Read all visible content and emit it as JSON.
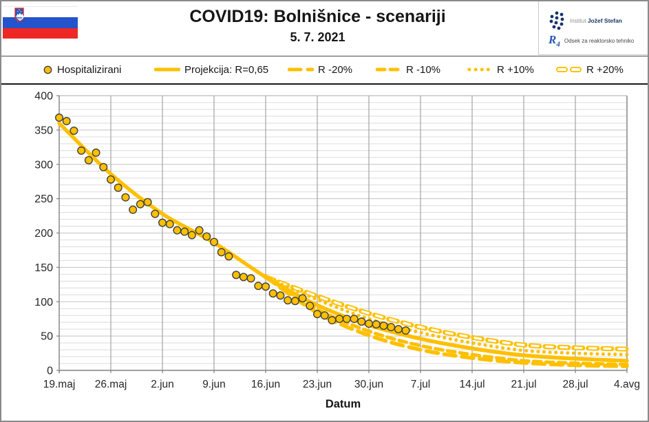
{
  "header": {
    "title": "COVID19: Bolnišnice - scenariji",
    "date": "5. 7. 2021",
    "logo_ijs_prefix": "Institut",
    "logo_ijs_bold": "Jožef Stefan",
    "logo_r4_glyph": "R",
    "logo_r4_sub": "4",
    "logo_r4_text": "Odsek za reaktorsko tehniko"
  },
  "legend": {
    "items": [
      {
        "label": "Hospitalizirani",
        "icon": "circle-marker"
      },
      {
        "label": "Projekcija: R=0,65",
        "icon": "solid-line"
      },
      {
        "label": "R -20%",
        "icon": "long-dash-line"
      },
      {
        "label": "R -10%",
        "icon": "dash-line"
      },
      {
        "label": "R +10%",
        "icon": "dot-line"
      },
      {
        "label": "R +20%",
        "icon": "hollow-dash-line"
      }
    ]
  },
  "chart_data": {
    "type": "line",
    "title": "COVID19: Bolnišnice - scenariji",
    "subtitle": "5. 7. 2021",
    "xlabel": "Datum",
    "ylabel": "",
    "ylim": [
      0,
      400
    ],
    "y_major_step": 50,
    "y_minor_step": 10,
    "grid": "on",
    "legend_position": "top",
    "x_tick_labels": [
      "19.maj",
      "26.maj",
      "2.jun",
      "9.jun",
      "16.jun",
      "23.jun",
      "30.jun",
      "7.jul",
      "14.jul",
      "21.jul",
      "28.jul",
      "4.avg"
    ],
    "x_tick_days": [
      0,
      7,
      14,
      21,
      28,
      35,
      42,
      49,
      56,
      63,
      70,
      77
    ],
    "observed": {
      "name": "Hospitalizirani",
      "start_label": "19.maj",
      "step_days": 1,
      "values": [
        368,
        363,
        349,
        320,
        306,
        317,
        296,
        278,
        266,
        252,
        234,
        242,
        245,
        228,
        215,
        213,
        204,
        202,
        197,
        204,
        195,
        187,
        172,
        166,
        139,
        136,
        134,
        123,
        122,
        112,
        109,
        102,
        101,
        105,
        94,
        82,
        80,
        73,
        75,
        75,
        75,
        71,
        68,
        67,
        65,
        63,
        60,
        58
      ]
    },
    "projection": {
      "name": "Projekcija: R=0,65",
      "days": [
        0,
        7,
        14,
        21,
        28,
        35,
        42,
        49,
        56,
        63,
        70,
        77
      ],
      "values": [
        360,
        286,
        228,
        186,
        136,
        95,
        66,
        46,
        32,
        22,
        17,
        14
      ]
    },
    "scenarios": [
      {
        "name": "R +20%",
        "style": "hollow-dash",
        "days": [
          28,
          35,
          42,
          49,
          56,
          63,
          70,
          77
        ],
        "values": [
          136,
          108,
          83,
          63,
          48,
          37,
          33,
          31
        ]
      },
      {
        "name": "R +10%",
        "style": "dot",
        "days": [
          28,
          35,
          42,
          49,
          56,
          63,
          70,
          77
        ],
        "values": [
          136,
          103,
          75,
          55,
          40,
          29,
          25,
          23
        ]
      },
      {
        "name": "R -10%",
        "style": "dash",
        "days": [
          28,
          35,
          42,
          49,
          56,
          63,
          70,
          77
        ],
        "values": [
          136,
          89,
          57,
          36,
          23,
          14,
          10.5,
          8.5
        ]
      },
      {
        "name": "R -20%",
        "style": "long-dash",
        "days": [
          28,
          35,
          42,
          49,
          56,
          63,
          70,
          77
        ],
        "values": [
          136,
          84,
          51,
          30,
          18,
          11,
          7.5,
          6
        ]
      }
    ],
    "colors": {
      "series_gold": "#FFC000",
      "marker_outline": "#3F3F3F",
      "grid_minor": "#DCDCDC",
      "grid_major": "#C3C3C3",
      "grid_vertical": "#A3A3A3",
      "axis": "#808080",
      "tick_text": "#262626"
    }
  }
}
